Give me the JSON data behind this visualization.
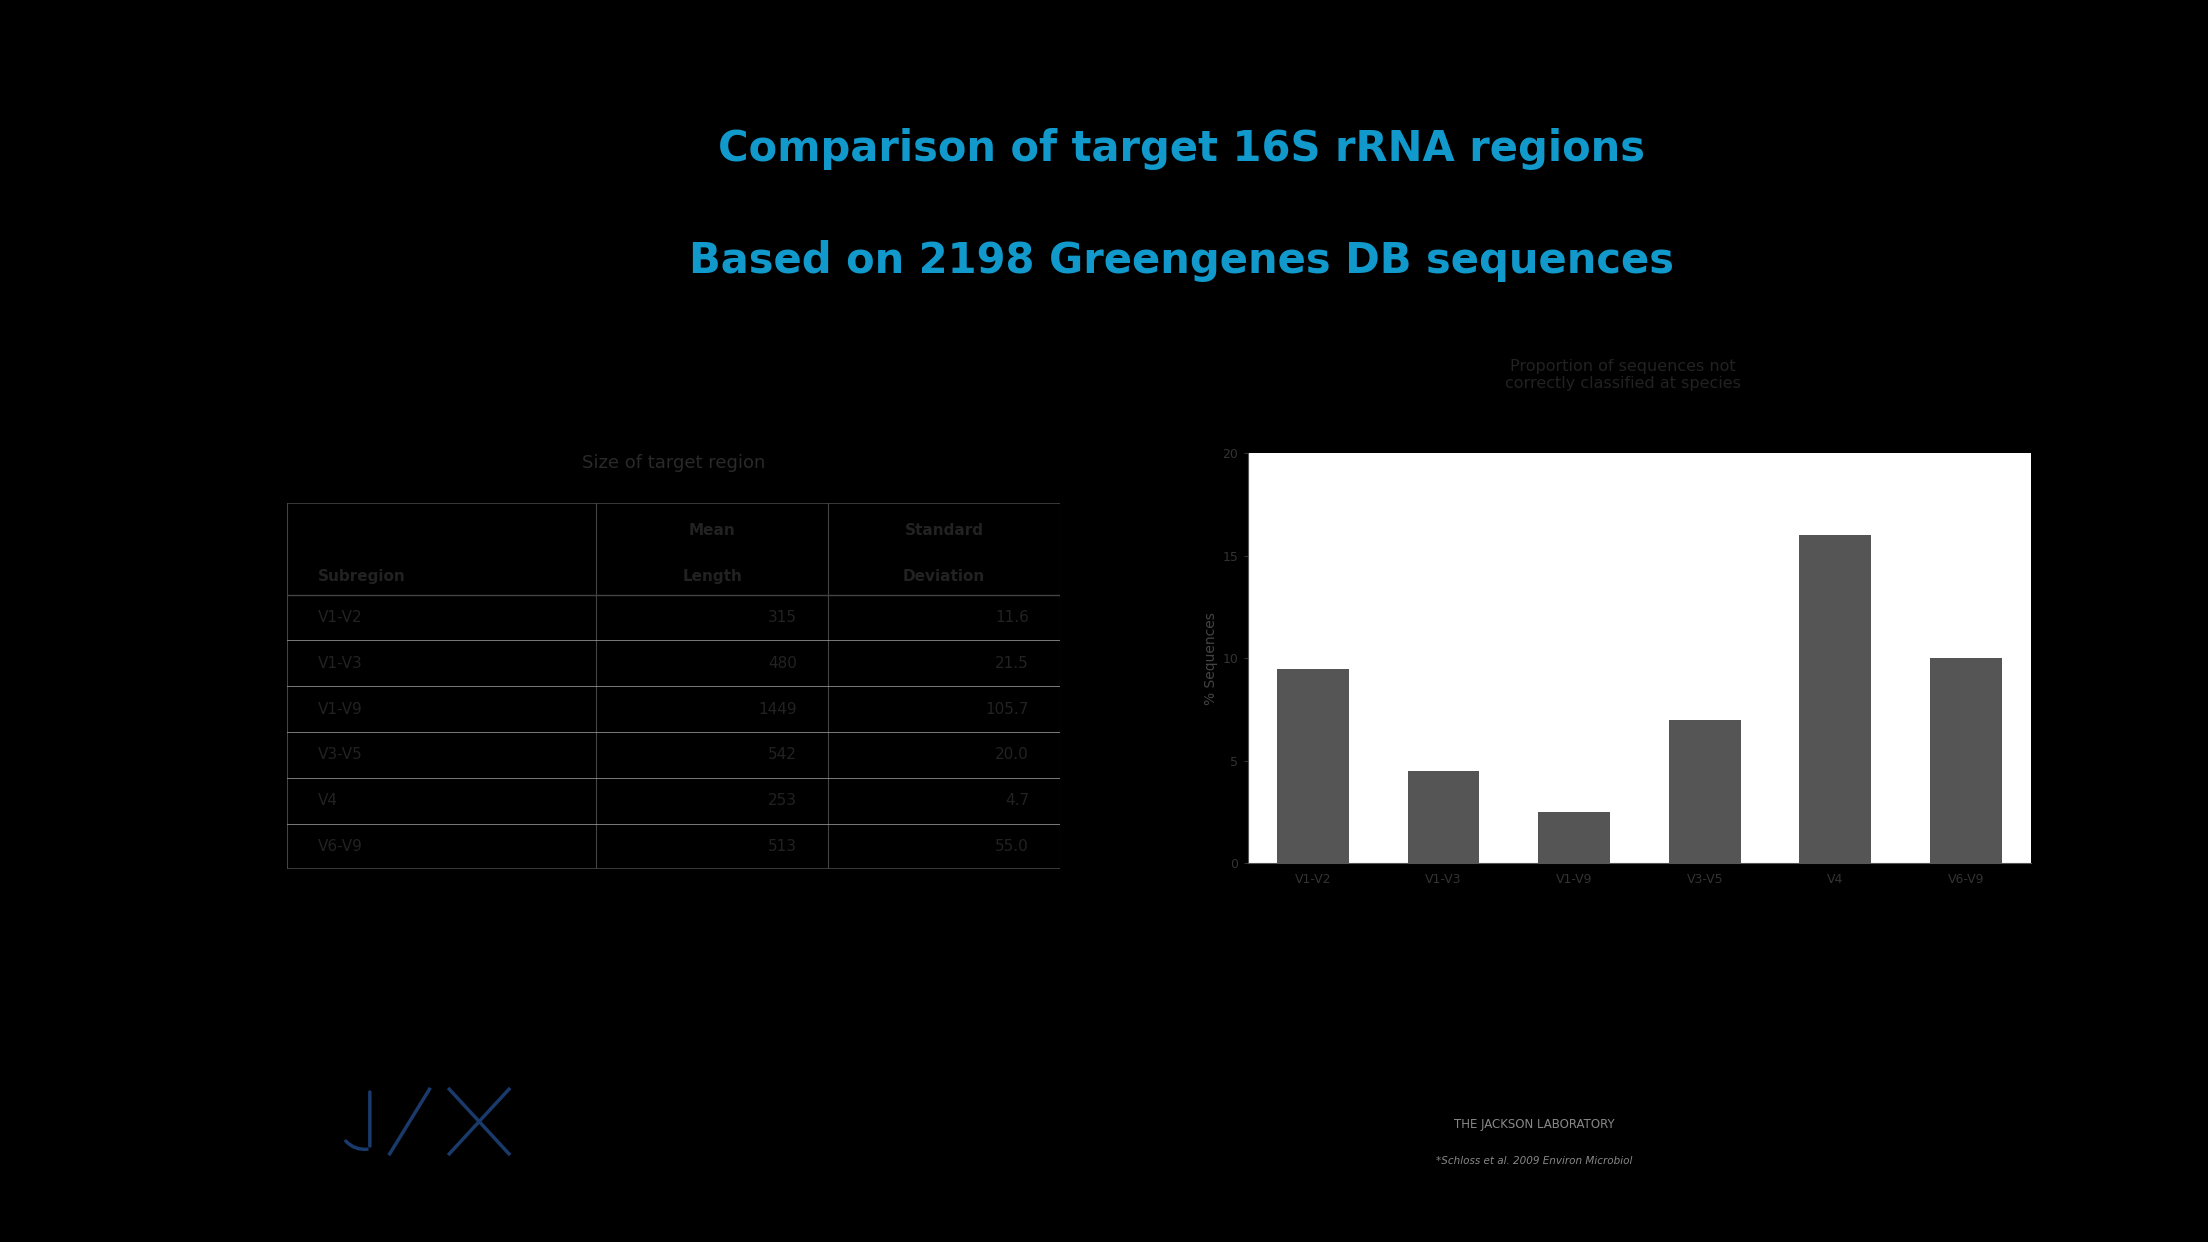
{
  "slide_bg": "#e8e4d8",
  "content_bg": "#f0ede4",
  "left_bar_color": "#1a3a8f",
  "left_black_bg": "#000000",
  "title_line1": "Comparison of target 16S rRNA regions",
  "title_line2": "Based on 2198 Greengenes DB sequences",
  "title_color": "#1199cc",
  "title_fontsize": 30,
  "table_title": "Size of target region",
  "table_title_bg": "#ffffcc",
  "table_rows": [
    [
      "V1-V2",
      "315",
      "11.6"
    ],
    [
      "V1-V3",
      "480",
      "21.5"
    ],
    [
      "V1-V9",
      "1449",
      "105.7"
    ],
    [
      "V3-V5",
      "542",
      "20.0"
    ],
    [
      "V4",
      "253",
      "4.7"
    ],
    [
      "V6-V9",
      "513",
      "55.0"
    ]
  ],
  "chart_title_line1": "Proportion of sequences not",
  "chart_title_line2": "correctly classified at species",
  "chart_categories": [
    "V1-V2",
    "V1-V3",
    "V1-V9",
    "V3-V5",
    "V4",
    "V6-V9"
  ],
  "chart_values": [
    9.5,
    4.5,
    2.5,
    7.0,
    16.0,
    10.0
  ],
  "bar_color": "#555555",
  "chart_ylabel": "% Sequences",
  "chart_ylim": [
    0,
    20
  ],
  "chart_yticks": [
    0,
    5,
    10,
    15,
    20
  ],
  "footer_text": "THE JACKSON LABORATORY",
  "footer_subtext": "*Schloss et al. 2009 Environ Microbiol",
  "jax_logo_color": "#1a3a6b",
  "outer_bg": "#000000",
  "outer_bg_right": "#888888"
}
